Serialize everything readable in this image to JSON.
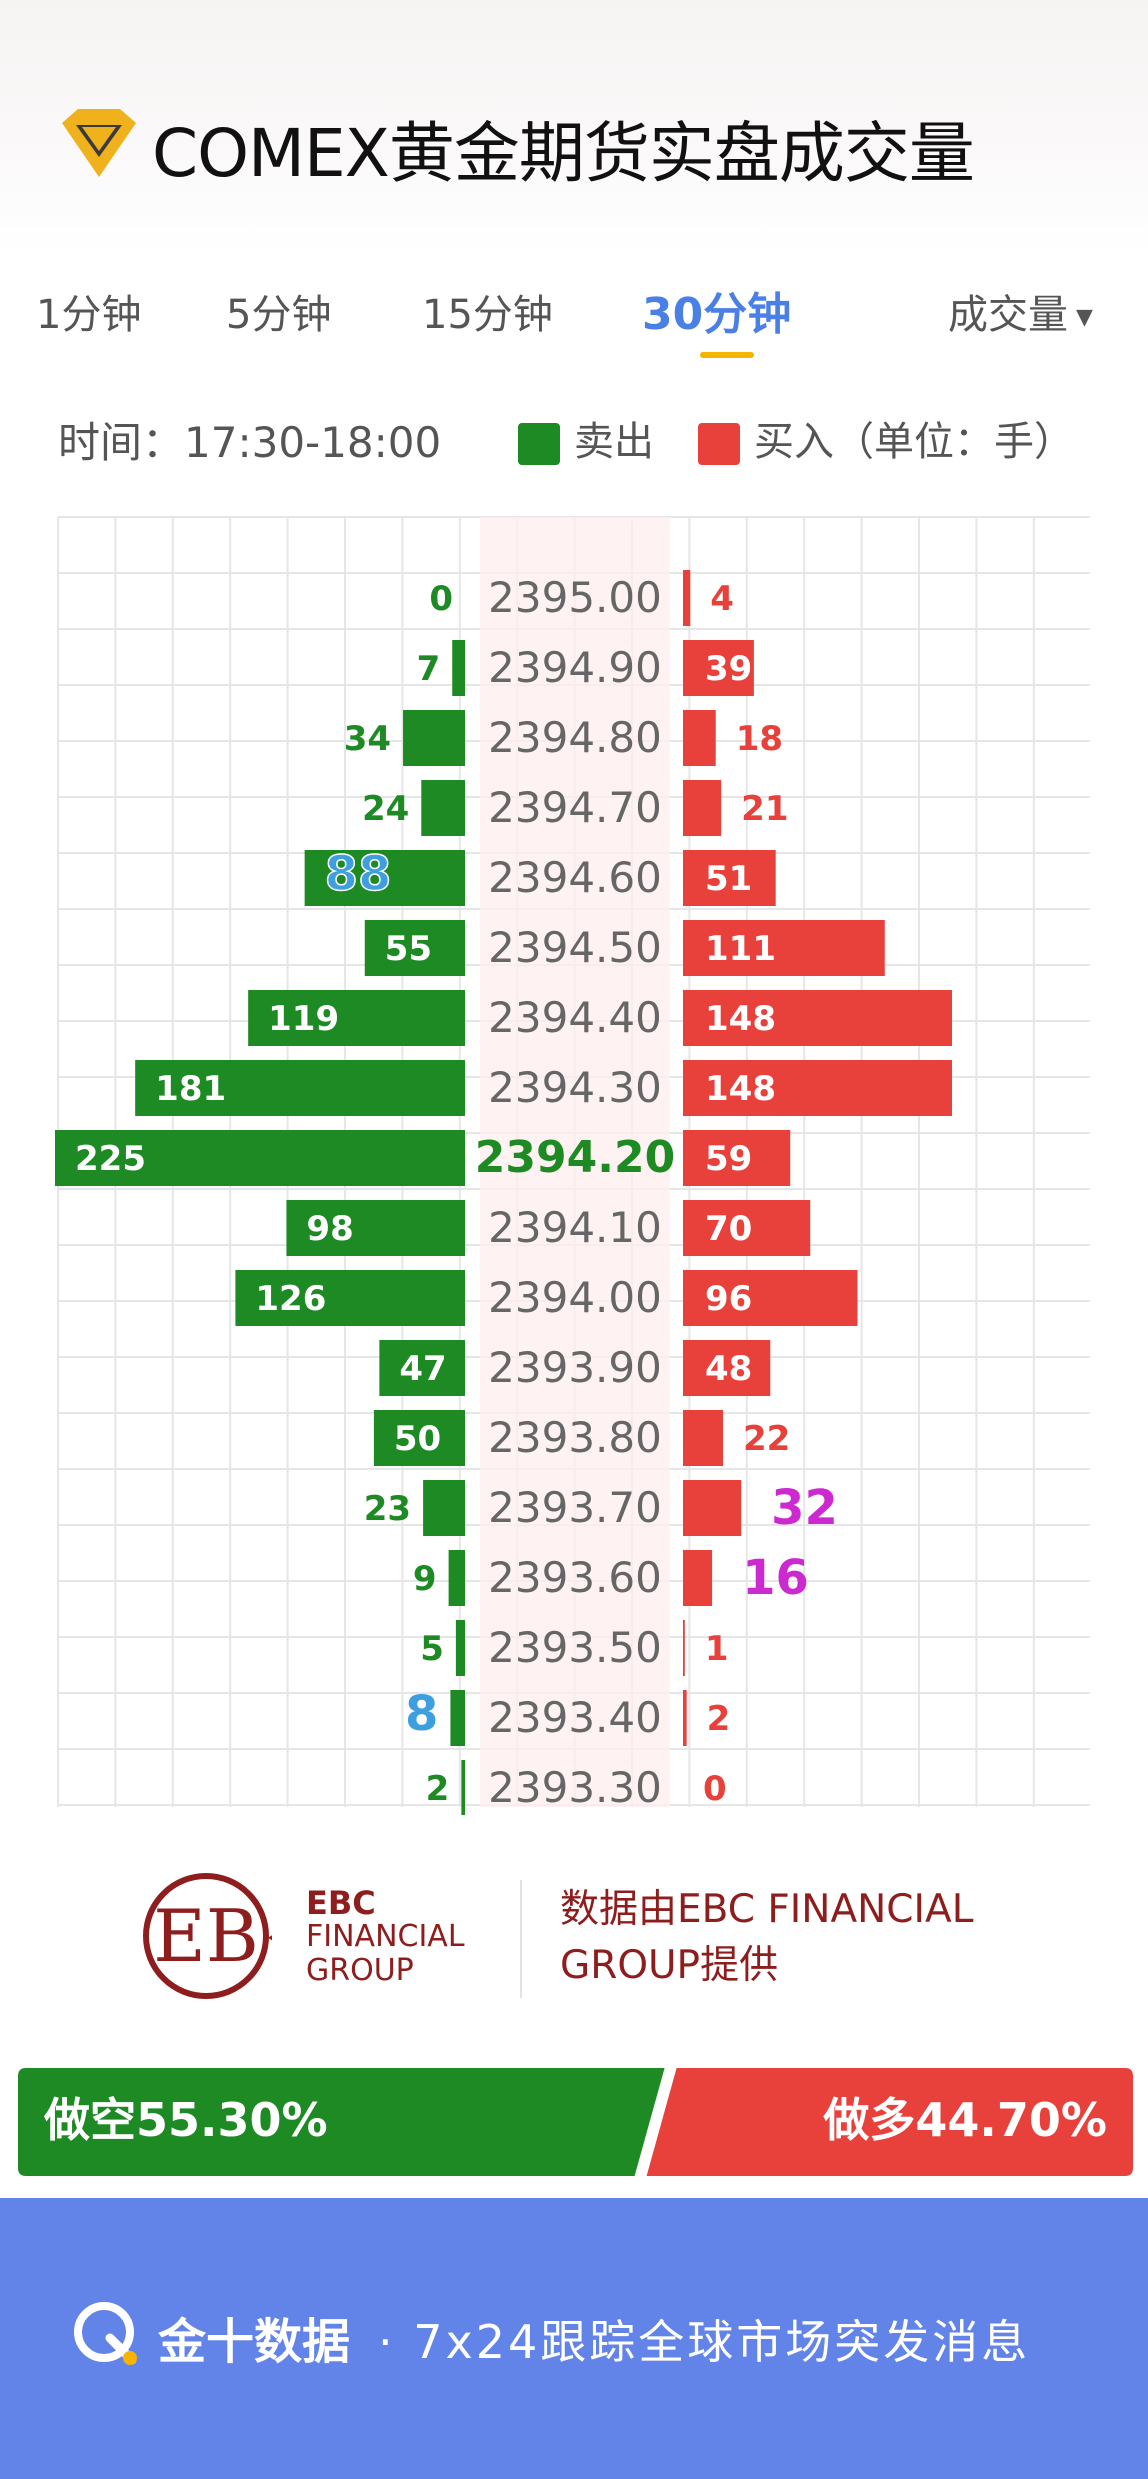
{
  "header": {
    "title": "COMEX黄金期货实盘成交量"
  },
  "tabs": [
    {
      "label": "1分钟",
      "active": false
    },
    {
      "label": "5分钟",
      "active": false
    },
    {
      "label": "15分钟",
      "active": false
    },
    {
      "label": "30分钟",
      "active": true
    }
  ],
  "metric_dropdown": {
    "label": "成交量"
  },
  "legend": {
    "time": "时间：17:30-18:00",
    "sell_label": "卖出",
    "buy_label": "买入（单位：手）"
  },
  "colors": {
    "sell": "#1e8a24",
    "buy": "#e8403a",
    "highlight_blue": "#3d9fe0",
    "highlight_magenta": "#cc2ad0",
    "current_price": "#1e8a24",
    "price_text": "#666666"
  },
  "chart_data": {
    "type": "bar",
    "current_price": "2394.20",
    "prices": [
      "2395.00",
      "2394.90",
      "2394.80",
      "2394.70",
      "2394.60",
      "2394.50",
      "2394.40",
      "2394.30",
      "2394.20",
      "2394.10",
      "2394.00",
      "2393.90",
      "2393.80",
      "2393.70",
      "2393.60",
      "2393.50",
      "2393.40",
      "2393.30"
    ],
    "series": [
      {
        "name": "卖出",
        "side": "sell",
        "values": [
          0,
          7,
          34,
          24,
          88,
          55,
          119,
          181,
          225,
          98,
          126,
          47,
          50,
          23,
          9,
          5,
          8,
          2
        ]
      },
      {
        "name": "买入",
        "side": "buy",
        "values": [
          4,
          39,
          18,
          21,
          51,
          111,
          148,
          148,
          59,
          70,
          96,
          48,
          22,
          32,
          16,
          1,
          2,
          0
        ]
      }
    ],
    "highlighted_sell_values": [
      "88",
      "8"
    ],
    "highlighted_buy_values": [
      "32",
      "16"
    ],
    "grid": true
  },
  "provider": {
    "logo_lines": [
      "EBC",
      "FINANCIAL",
      "GROUP"
    ],
    "text_line1": "数据由EBC FINANCIAL",
    "text_line2": "GROUP提供"
  },
  "ratio": {
    "short_label": "做空55.30%",
    "long_label": "做多44.70%",
    "short_pct": 55.3,
    "long_pct": 44.7
  },
  "footer": {
    "brand": "金十数据",
    "slogan": "· 7x24跟踪全球市场突发消息"
  }
}
